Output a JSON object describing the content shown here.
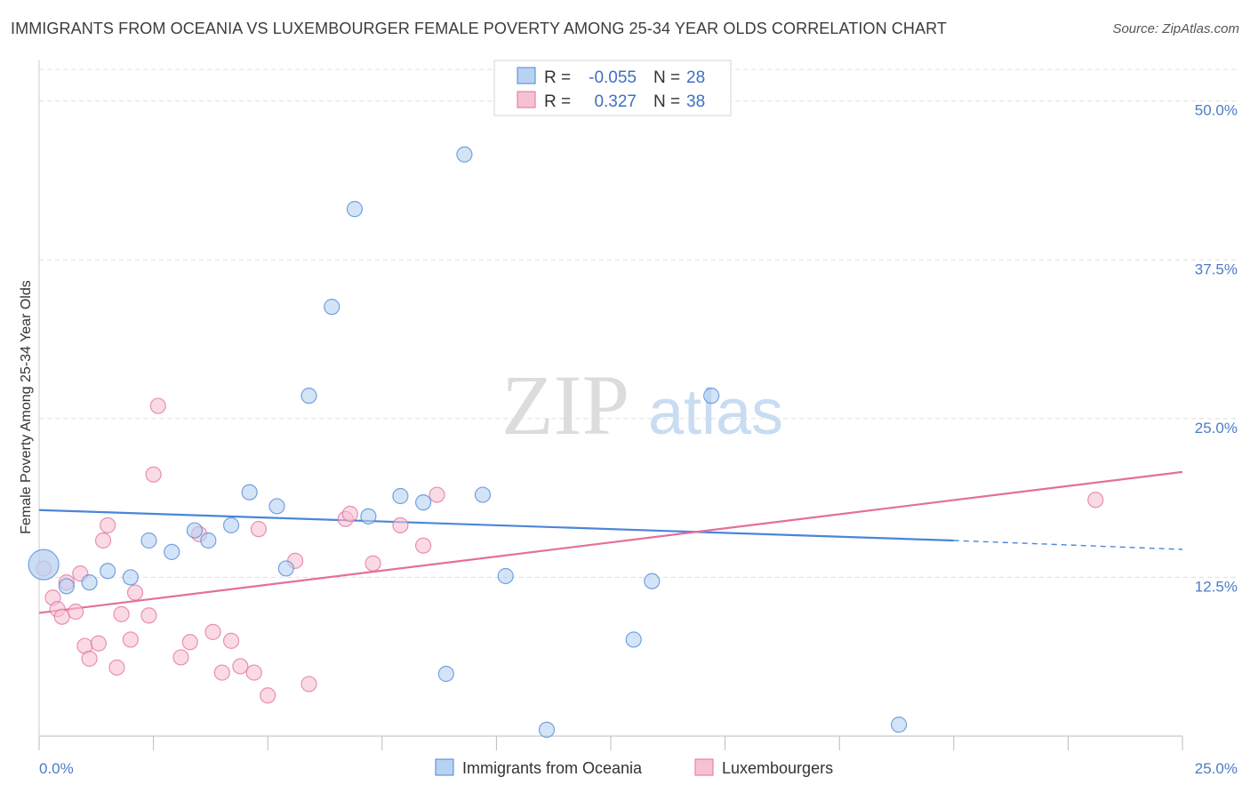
{
  "header": {
    "title": "IMMIGRANTS FROM OCEANIA VS LUXEMBOURGER FEMALE POVERTY AMONG 25-34 YEAR OLDS CORRELATION CHART",
    "source": "Source: ZipAtlas.com"
  },
  "watermark": {
    "zip": "ZIP",
    "atlas": "atlas"
  },
  "legend": {
    "series": [
      {
        "r_label": "R =",
        "r_value": "-0.055",
        "n_label": "N =",
        "n_value": "28"
      },
      {
        "r_label": "R =",
        "r_value": "0.327",
        "n_label": "N =",
        "n_value": "38"
      }
    ]
  },
  "chart_data": {
    "type": "scatter",
    "ylabel": "Female Poverty Among 25-34 Year Olds",
    "xlim": [
      0,
      25
    ],
    "ylim": [
      0,
      52.5
    ],
    "x_tick_labels": [
      "0.0%",
      "25.0%"
    ],
    "y_ticks": [
      12.5,
      25.0,
      37.5,
      50.0
    ],
    "y_tick_labels": [
      "12.5%",
      "25.0%",
      "37.5%",
      "50.0%"
    ],
    "grid": true,
    "colors": {
      "oceania": "#4a86d8",
      "luxembourgers": "#e36f9b"
    },
    "series": [
      {
        "name": "Immigrants from Oceania",
        "color": "#4a86d8",
        "fill": "#b8d2f2",
        "points": [
          [
            0.1,
            13.5
          ],
          [
            1.1,
            12.1
          ],
          [
            0.6,
            11.8
          ],
          [
            1.5,
            13.0
          ],
          [
            2.0,
            12.5
          ],
          [
            2.4,
            15.4
          ],
          [
            2.9,
            14.5
          ],
          [
            3.4,
            16.2
          ],
          [
            3.7,
            15.4
          ],
          [
            4.2,
            16.6
          ],
          [
            4.6,
            19.2
          ],
          [
            5.2,
            18.1
          ],
          [
            5.4,
            13.2
          ],
          [
            5.9,
            26.8
          ],
          [
            6.4,
            33.8
          ],
          [
            6.9,
            41.5
          ],
          [
            7.2,
            17.3
          ],
          [
            7.9,
            18.9
          ],
          [
            8.4,
            18.4
          ],
          [
            8.9,
            4.9
          ],
          [
            9.3,
            45.8
          ],
          [
            9.7,
            19.0
          ],
          [
            10.2,
            12.6
          ],
          [
            11.1,
            0.5
          ],
          [
            13.0,
            7.6
          ],
          [
            13.4,
            12.2
          ],
          [
            14.7,
            26.8
          ],
          [
            18.8,
            0.9
          ]
        ],
        "trend": {
          "x_start": 0,
          "y_start": 17.8,
          "x_end": 20,
          "y_end": 15.4,
          "x_dash_end": 25,
          "y_dash_end": 14.7
        }
      },
      {
        "name": "Luxembourgers",
        "color": "#e36f9b",
        "fill": "#f6c2d3",
        "points": [
          [
            0.1,
            13.2
          ],
          [
            0.3,
            10.9
          ],
          [
            0.4,
            10.0
          ],
          [
            0.5,
            9.4
          ],
          [
            0.6,
            12.1
          ],
          [
            0.8,
            9.8
          ],
          [
            0.9,
            12.8
          ],
          [
            1.0,
            7.1
          ],
          [
            1.1,
            6.1
          ],
          [
            1.3,
            7.3
          ],
          [
            1.4,
            15.4
          ],
          [
            1.5,
            16.6
          ],
          [
            1.7,
            5.4
          ],
          [
            1.8,
            9.6
          ],
          [
            2.0,
            7.6
          ],
          [
            2.1,
            11.3
          ],
          [
            2.4,
            9.5
          ],
          [
            2.5,
            20.6
          ],
          [
            2.6,
            26.0
          ],
          [
            3.1,
            6.2
          ],
          [
            3.3,
            7.4
          ],
          [
            3.5,
            15.9
          ],
          [
            3.8,
            8.2
          ],
          [
            4.0,
            5.0
          ],
          [
            4.2,
            7.5
          ],
          [
            4.4,
            5.5
          ],
          [
            4.7,
            5.0
          ],
          [
            4.8,
            16.3
          ],
          [
            5.0,
            3.2
          ],
          [
            5.6,
            13.8
          ],
          [
            5.9,
            4.1
          ],
          [
            6.7,
            17.1
          ],
          [
            6.8,
            17.5
          ],
          [
            7.3,
            13.6
          ],
          [
            7.9,
            16.6
          ],
          [
            8.4,
            15.0
          ],
          [
            8.7,
            19.0
          ],
          [
            23.1,
            18.6
          ]
        ],
        "trend": {
          "x_start": 0,
          "y_start": 9.7,
          "x_end": 25,
          "y_end": 20.8
        }
      }
    ]
  }
}
